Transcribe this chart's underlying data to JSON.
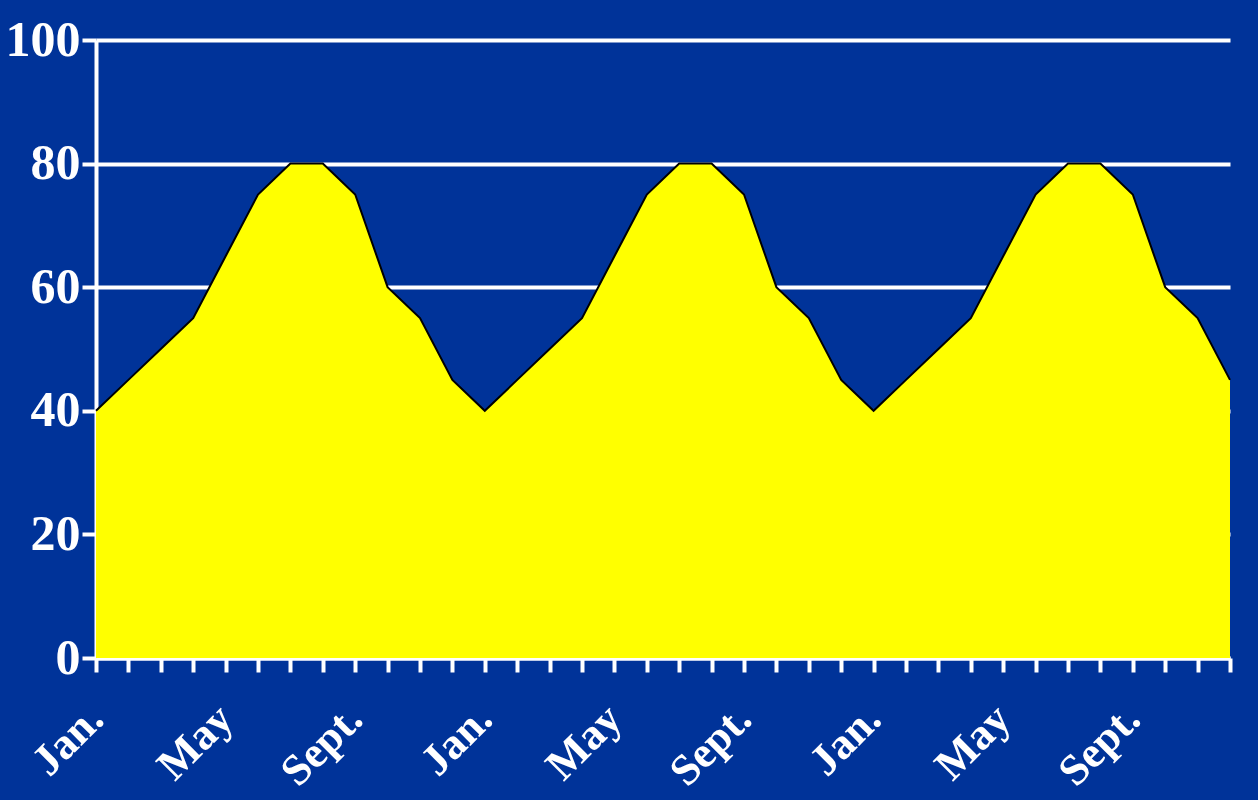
{
  "chart_data": {
    "type": "area",
    "categories": [
      "Jan.",
      null,
      null,
      null,
      "May",
      null,
      null,
      null,
      "Sept.",
      null,
      null,
      null,
      "Jan.",
      null,
      null,
      null,
      "May",
      null,
      null,
      null,
      "Sept.",
      null,
      null,
      null,
      "Jan.",
      null,
      null,
      null,
      "May",
      null,
      null,
      null,
      "Sept.",
      null,
      null,
      null
    ],
    "values": [
      40,
      45,
      50,
      55,
      65,
      75,
      80,
      80,
      75,
      60,
      55,
      45,
      40,
      45,
      50,
      55,
      65,
      75,
      80,
      80,
      75,
      60,
      55,
      45,
      40,
      45,
      50,
      55,
      65,
      75,
      80,
      80,
      75,
      60,
      55,
      45
    ],
    "color": "#ffff00",
    "ylim": [
      0,
      100
    ],
    "yticks": [
      0,
      20,
      40,
      60,
      80,
      100
    ],
    "grid": "y"
  }
}
